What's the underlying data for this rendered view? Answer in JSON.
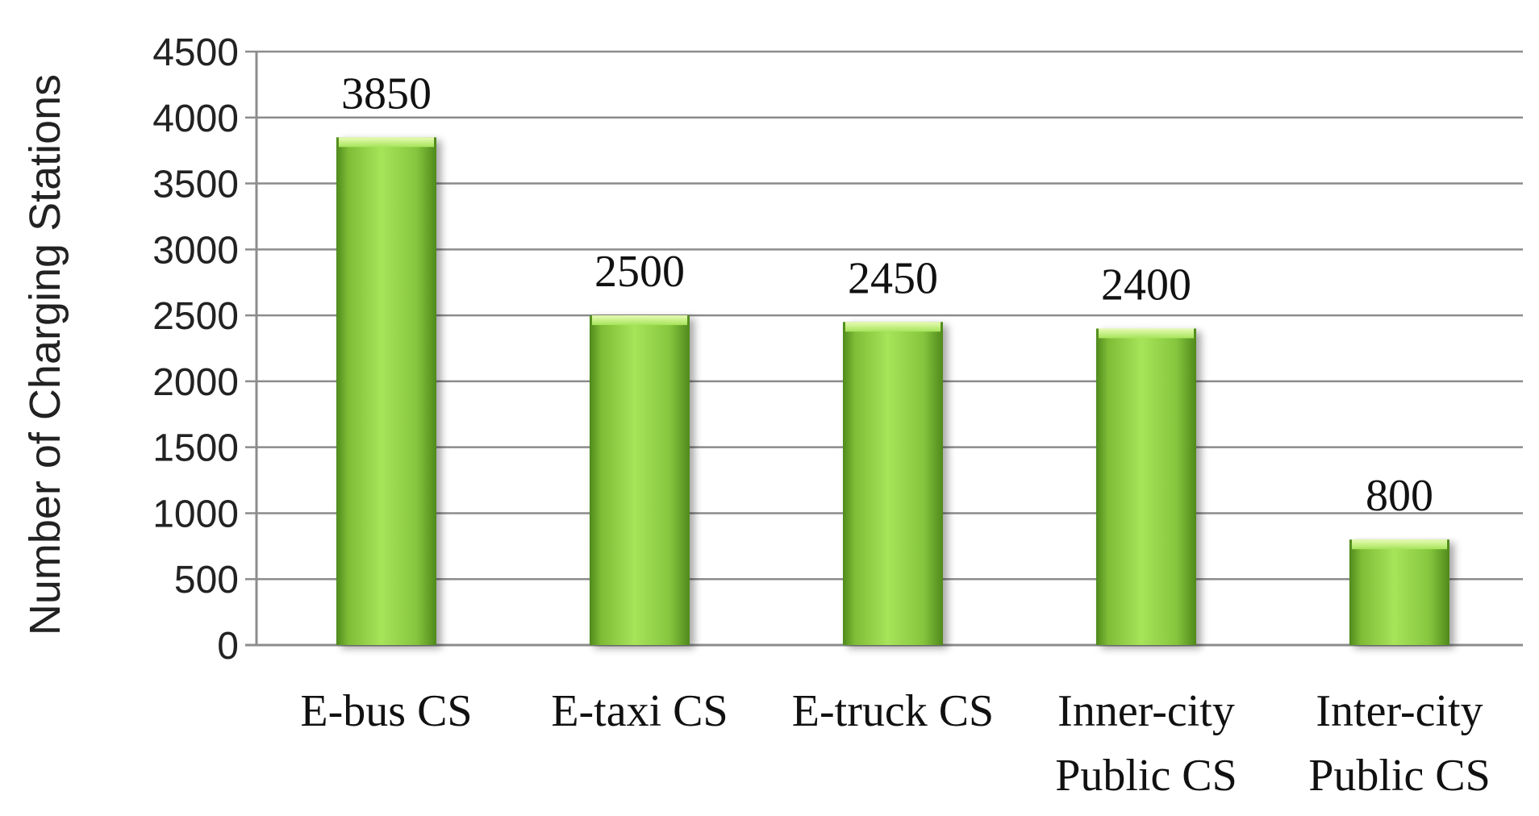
{
  "chart_data": {
    "type": "bar",
    "categories": [
      [
        "E-bus CS"
      ],
      [
        "E-taxi CS"
      ],
      [
        "E-truck CS"
      ],
      [
        "Inner-city",
        "Public CS"
      ],
      [
        "Inter-city",
        "Public CS"
      ]
    ],
    "values": [
      3850,
      2500,
      2450,
      2400,
      800
    ],
    "data_labels": [
      "3850",
      "2500",
      "2450",
      "2400",
      "800"
    ],
    "ylabel": "Number of Charging Stations",
    "ylim": [
      0,
      4500
    ],
    "yticks": [
      0,
      500,
      1000,
      1500,
      2000,
      2500,
      3000,
      3500,
      4000,
      4500
    ],
    "grid": true,
    "legend": "none",
    "colors": {
      "bar_light": "#a6e45a",
      "bar_mid": "#82c23a",
      "bar_dark": "#4f8a1c",
      "bar_top": "#d9f59a",
      "grid": "#8c8c8c",
      "text": "#111111"
    }
  }
}
